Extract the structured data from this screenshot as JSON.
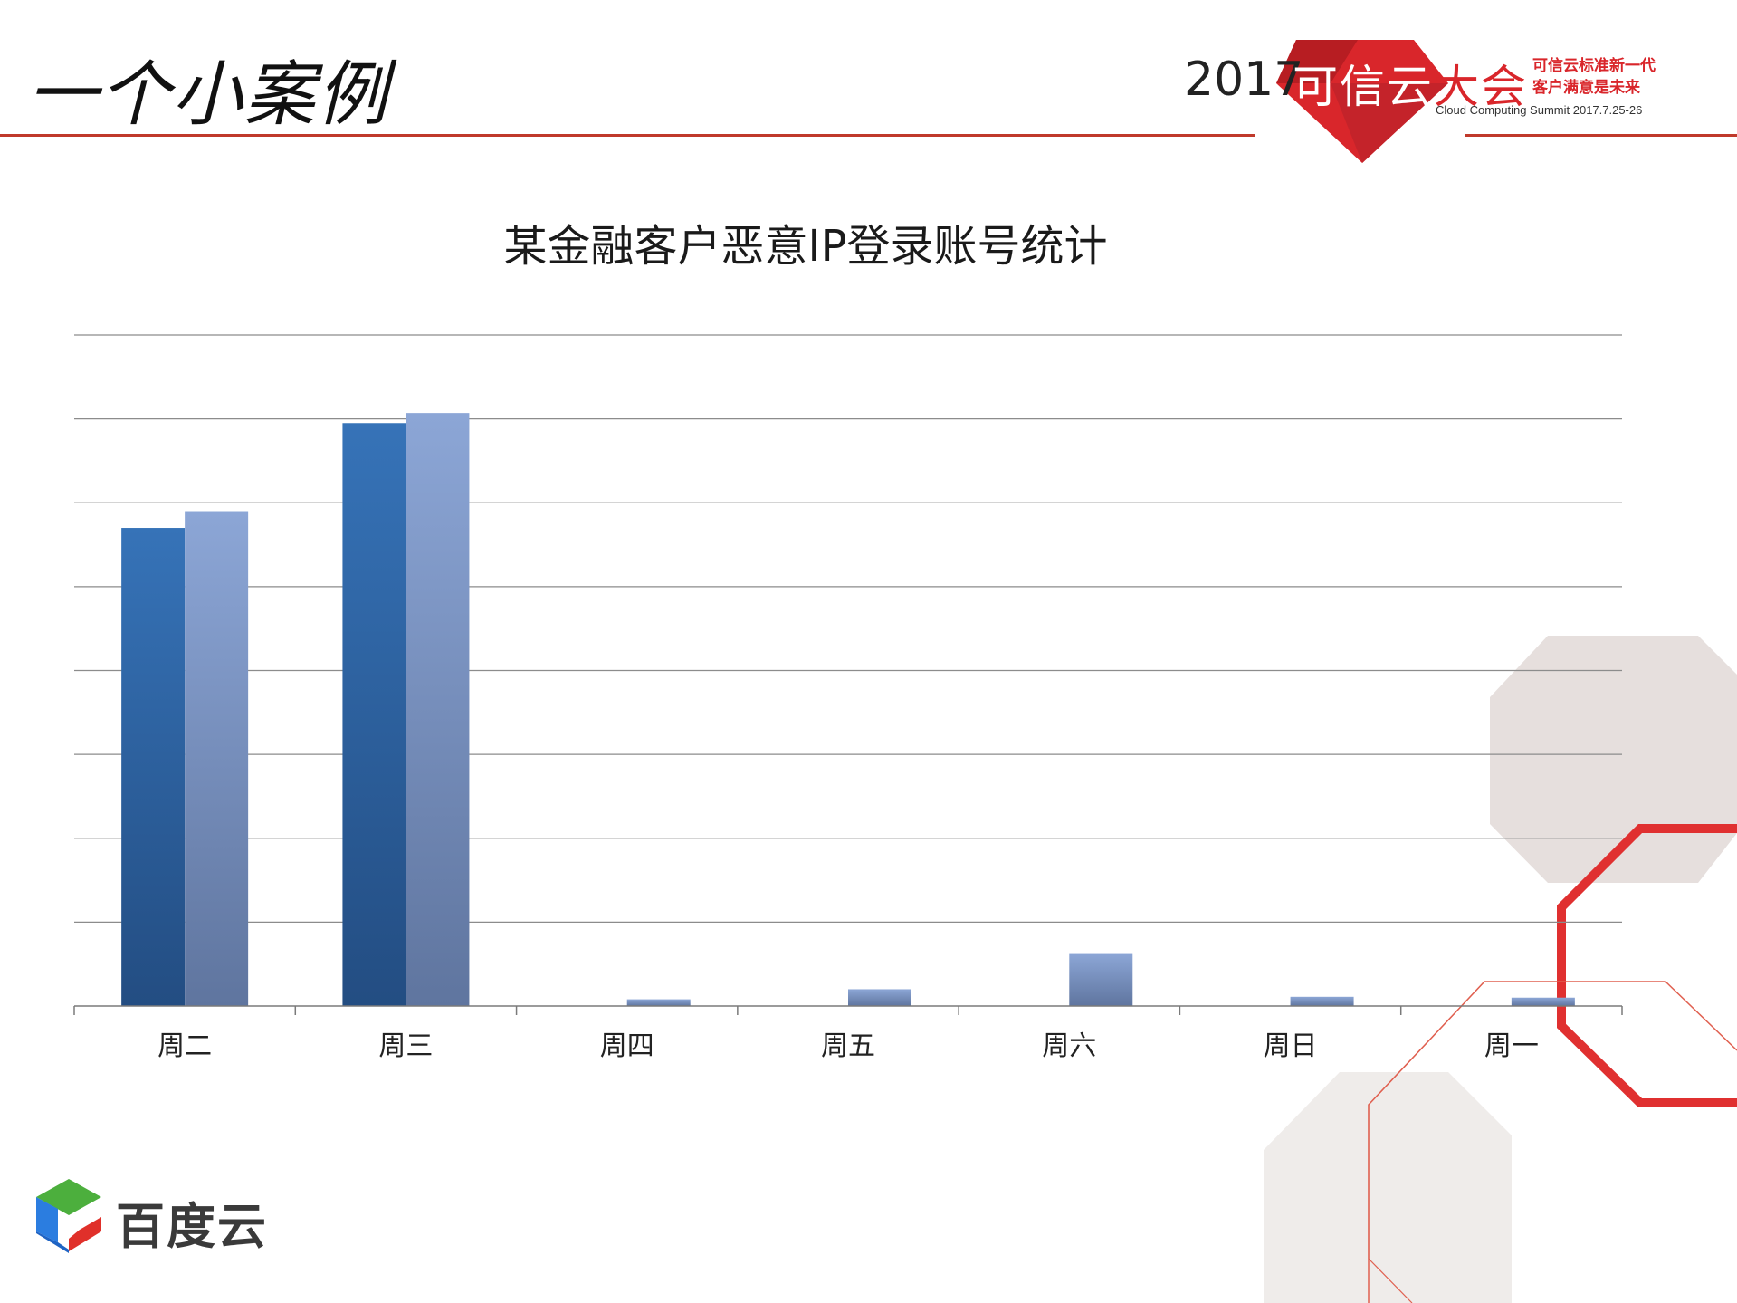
{
  "header": {
    "slide_title": "一个小案例",
    "event_year": "2017",
    "event_name_main": "可信云",
    "event_name_tail": "大会",
    "slogan_line1": "可信云标准新一代",
    "slogan_line2": "客户满意是未来",
    "summit_text": "Cloud Computing Summit 2017.7.25-26"
  },
  "footer": {
    "brand_name": "百度云",
    "logo_icon": "baidu-cloud-hexagon-icon"
  },
  "colors": {
    "accent_red": "#d9262b",
    "header_line": "#c0392b",
    "series_dark": "#2f5f9e",
    "series_light": "#8aa4d2"
  },
  "chart_data": {
    "type": "bar",
    "title": "某金融客户恶意IP登录账号统计",
    "xlabel": "",
    "ylabel": "",
    "categories": [
      "周二",
      "周三",
      "周四",
      "周五",
      "周六",
      "周日",
      "周一"
    ],
    "series": [
      {
        "values": [
          5.7,
          6.95,
          0,
          0,
          0,
          0,
          0
        ]
      },
      {
        "values": [
          5.9,
          7.07,
          0.08,
          0.2,
          0.62,
          0.11,
          0.1
        ]
      }
    ],
    "ylim": [
      0,
      8
    ],
    "grid": true,
    "legend": "none"
  }
}
